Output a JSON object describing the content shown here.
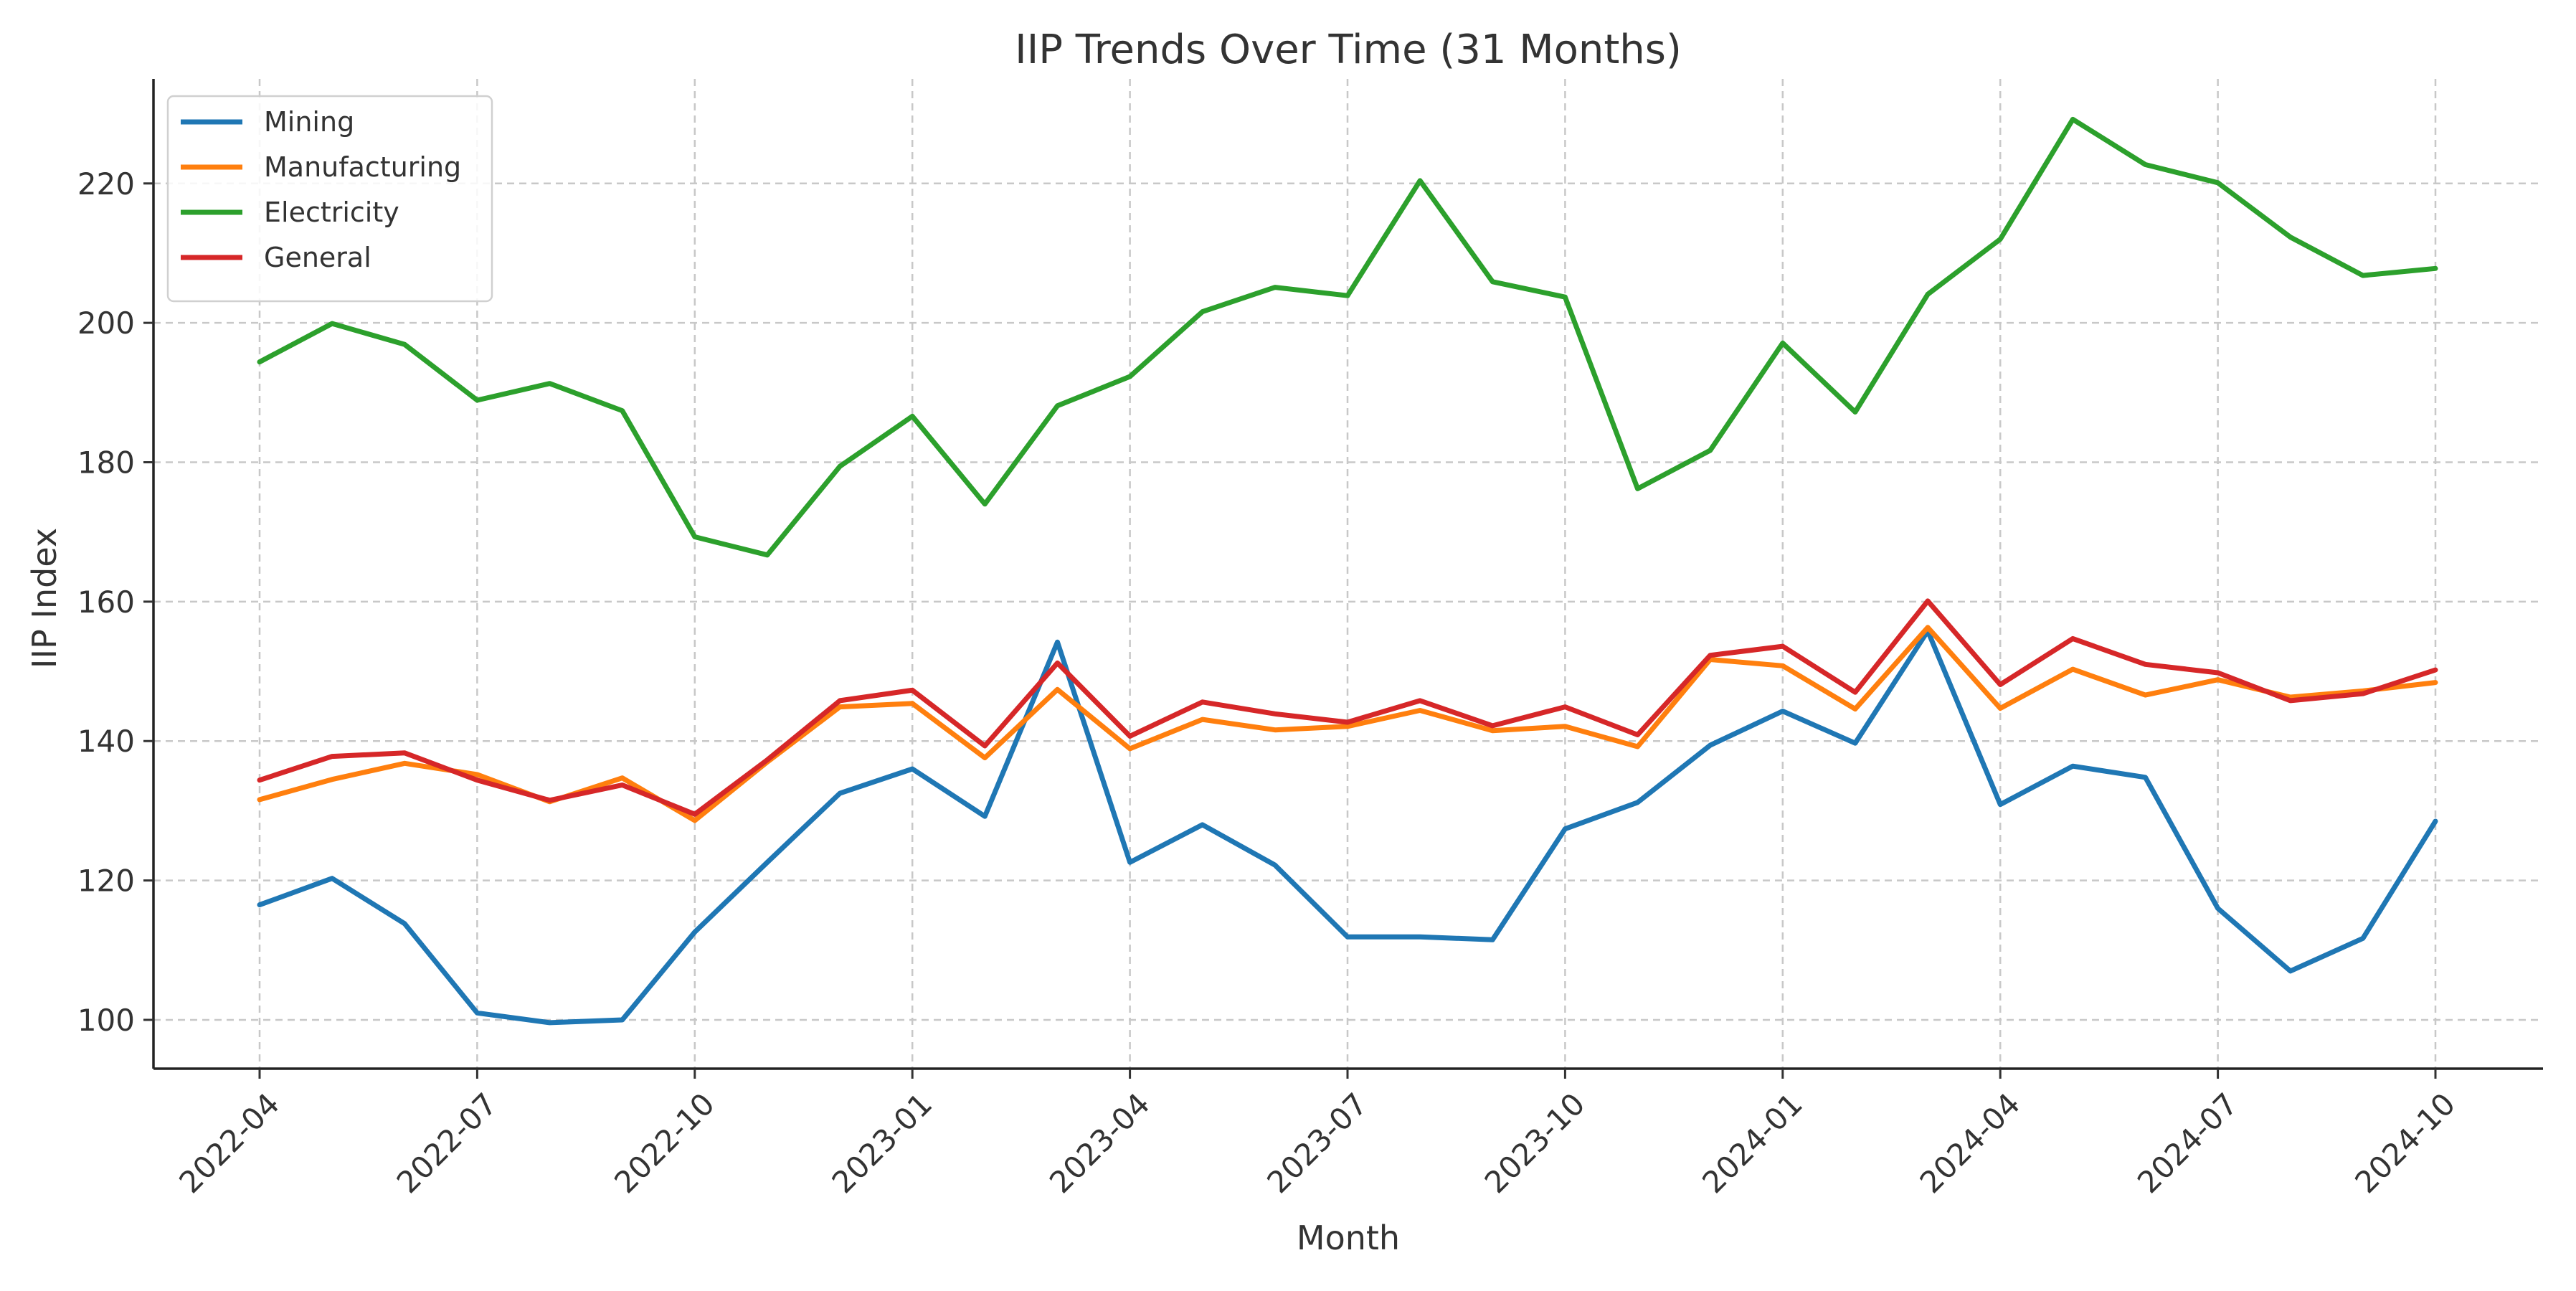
{
  "chart_data": {
    "type": "line",
    "title": "IIP Trends Over Time (31 Months)",
    "xlabel": "Month",
    "ylabel": "IIP Index",
    "x": [
      "2022-04",
      "2022-05",
      "2022-06",
      "2022-07",
      "2022-08",
      "2022-09",
      "2022-10",
      "2022-11",
      "2022-12",
      "2023-01",
      "2023-02",
      "2023-03",
      "2023-04",
      "2023-05",
      "2023-06",
      "2023-07",
      "2023-08",
      "2023-09",
      "2023-10",
      "2023-11",
      "2023-12",
      "2024-01",
      "2024-02",
      "2024-03",
      "2024-04",
      "2024-05",
      "2024-06",
      "2024-07",
      "2024-08",
      "2024-09",
      "2024-10"
    ],
    "x_ticks": [
      "2022-04",
      "2022-07",
      "2022-10",
      "2023-01",
      "2023-04",
      "2023-07",
      "2023-10",
      "2024-01",
      "2024-04",
      "2024-07",
      "2024-10"
    ],
    "y_ticks": [
      100,
      120,
      140,
      160,
      180,
      200,
      220
    ],
    "ylim": [
      93,
      235
    ],
    "grid": true,
    "legend_position": "upper-left",
    "series": [
      {
        "name": "Mining",
        "color": "#1f77b4",
        "values": [
          116.5,
          120.3,
          113.8,
          101.0,
          99.6,
          100.0,
          112.6,
          122.6,
          132.5,
          136.0,
          129.2,
          154.2,
          122.6,
          128.0,
          122.2,
          111.9,
          111.9,
          111.5,
          127.4,
          131.2,
          139.4,
          144.3,
          139.7,
          155.8,
          130.9,
          136.4,
          134.8,
          116.0,
          107.0,
          111.7,
          128.5
        ]
      },
      {
        "name": "Manufacturing",
        "color": "#ff7f0e",
        "values": [
          131.6,
          134.5,
          136.8,
          135.2,
          131.3,
          134.7,
          128.6,
          137.0,
          144.9,
          145.4,
          137.6,
          147.4,
          138.9,
          143.1,
          141.6,
          142.1,
          144.4,
          141.5,
          142.1,
          139.2,
          151.7,
          150.8,
          144.6,
          156.3,
          144.7,
          150.3,
          146.6,
          148.8,
          146.3,
          147.2,
          148.4
        ]
      },
      {
        "name": "Electricity",
        "color": "#2ca02c",
        "values": [
          194.4,
          199.9,
          196.9,
          188.9,
          191.3,
          187.4,
          169.3,
          166.7,
          179.4,
          186.6,
          174.0,
          188.1,
          192.3,
          201.6,
          205.1,
          203.9,
          220.4,
          205.9,
          203.7,
          176.2,
          181.7,
          197.1,
          187.2,
          204.1,
          212.0,
          229.2,
          222.7,
          220.1,
          212.3,
          206.8,
          207.8
        ]
      },
      {
        "name": "General",
        "color": "#d62728",
        "values": [
          134.4,
          137.8,
          138.3,
          134.4,
          131.5,
          133.7,
          129.5,
          137.3,
          145.8,
          147.3,
          139.3,
          151.2,
          140.7,
          145.6,
          143.9,
          142.7,
          145.8,
          142.2,
          144.9,
          140.9,
          152.3,
          153.6,
          147.0,
          160.1,
          148.1,
          154.7,
          151.0,
          149.8,
          145.8,
          146.8,
          150.2
        ]
      }
    ]
  }
}
